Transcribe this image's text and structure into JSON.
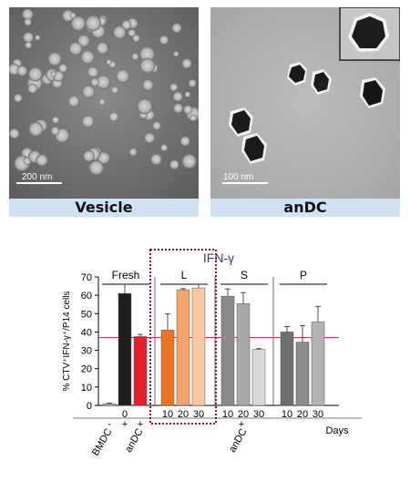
{
  "images": [
    {
      "caption": "Vesicle",
      "scale": "200 nm"
    },
    {
      "caption": "anDC",
      "scale": "100 nm"
    }
  ],
  "chart_data": {
    "type": "bar",
    "title": "IFN-γ",
    "ylabel": "% CTV⁺IFN-γ⁺/P14 cells",
    "xlabel": "Days",
    "ylim": [
      0,
      70
    ],
    "yticks": [
      0,
      10,
      20,
      30,
      40,
      50,
      60,
      70
    ],
    "reference_line": 37,
    "reference_color": "#e0303a",
    "groups": [
      {
        "label": "Fresh",
        "day_labels": [
          "",
          "0",
          ""
        ],
        "bars": [
          {
            "value": 0.8,
            "error": 0.4,
            "color": "#bdbdbd"
          },
          {
            "value": 61,
            "error": 5,
            "color": "#1e1e1e"
          },
          {
            "value": 37.5,
            "error": 1.2,
            "color": "#e6202a"
          }
        ]
      },
      {
        "label": "L",
        "day_labels": [
          "10",
          "20",
          "30"
        ],
        "bars": [
          {
            "value": 41,
            "error": 9,
            "color": "#ec7322"
          },
          {
            "value": 63,
            "error": 0.6,
            "color": "#f5a36b"
          },
          {
            "value": 64,
            "error": 2,
            "color": "#f9c8a2"
          }
        ]
      },
      {
        "label": "S",
        "day_labels": [
          "10",
          "20",
          "30"
        ],
        "bars": [
          {
            "value": 59.5,
            "error": 4,
            "color": "#8a8a8a"
          },
          {
            "value": 55.5,
            "error": 6,
            "color": "#a9a9a9"
          },
          {
            "value": 30.5,
            "error": 0.4,
            "color": "#d9d9d9"
          }
        ]
      },
      {
        "label": "P",
        "day_labels": [
          "10",
          "20",
          "30"
        ],
        "bars": [
          {
            "value": 40,
            "error": 3,
            "color": "#6e6e6e"
          },
          {
            "value": 34.5,
            "error": 9,
            "color": "#8c8c8c"
          },
          {
            "value": 45.5,
            "error": 8.5,
            "color": "#b3b3b3"
          }
        ]
      }
    ],
    "rows": [
      {
        "name": "BMDC",
        "marks": [
          "-",
          "+",
          "+"
        ]
      },
      {
        "name": "anDC",
        "marks": [
          "+"
        ]
      }
    ]
  }
}
